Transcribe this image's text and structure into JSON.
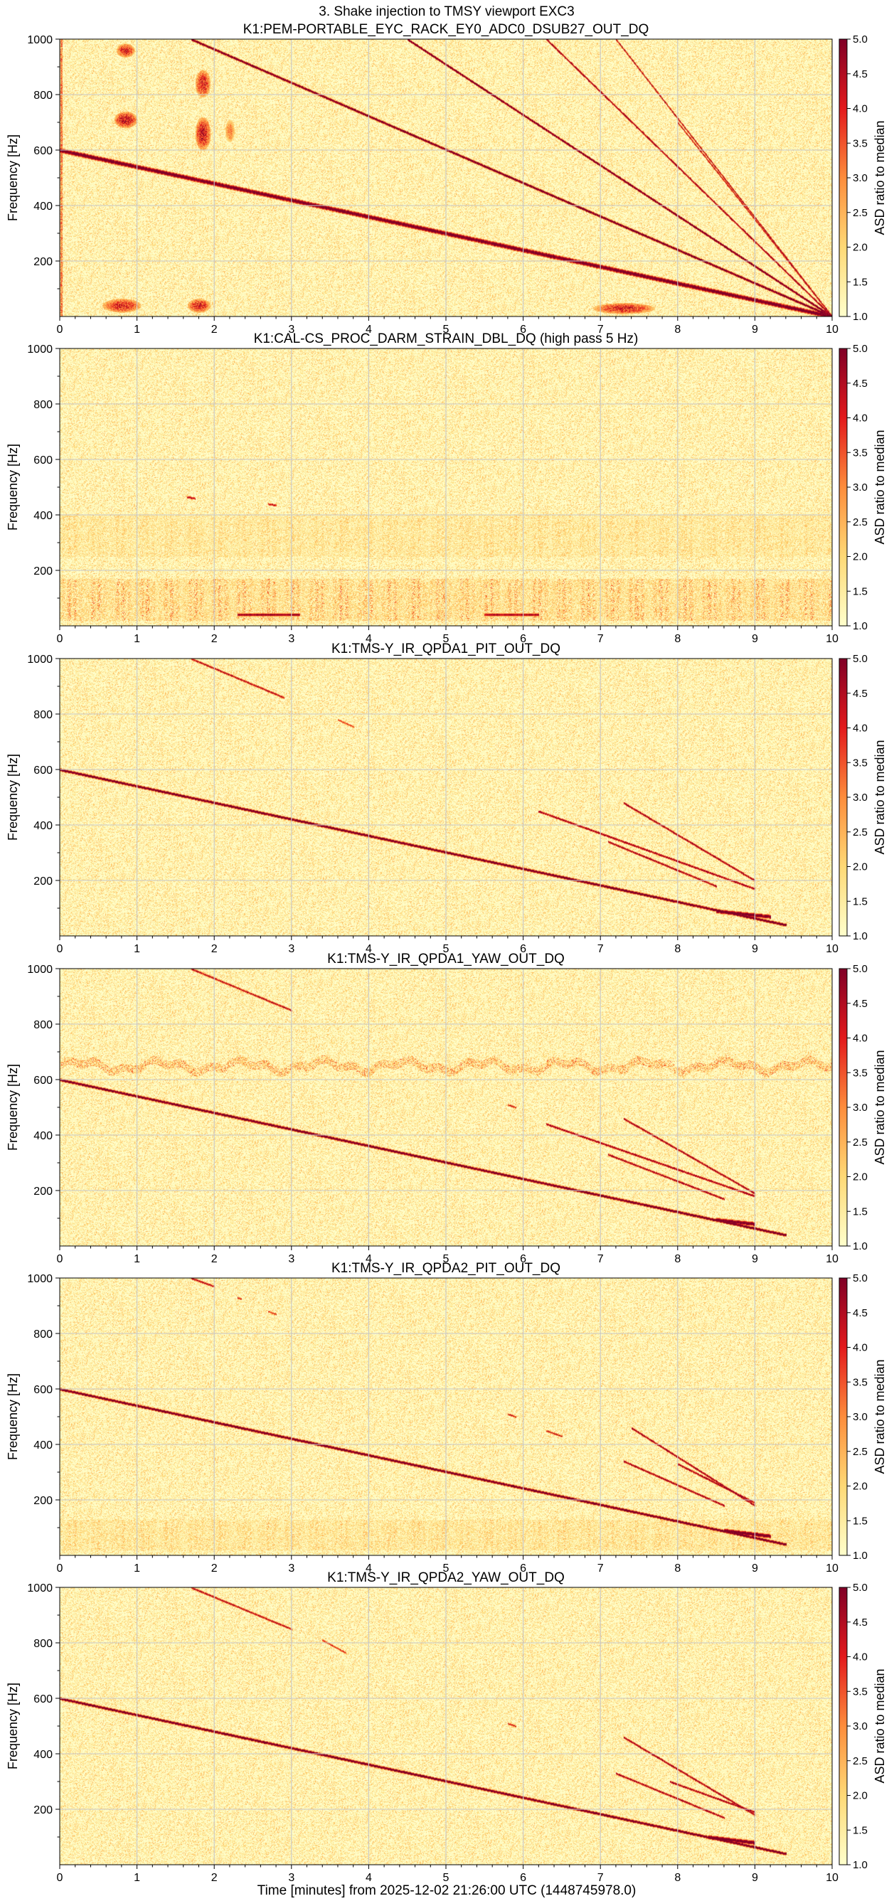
{
  "figure": {
    "suptitle": "3. Shake injection to TMSY viewport EXC3",
    "shared_xlabel": "Time [minutes] from 2025-12-02 21:26:00 UTC (1448745978.0)"
  },
  "colormap": {
    "low": "#ffffcc",
    "mid_low": "#fed976",
    "mid": "#fd8d3c",
    "mid_high": "#e31a1c",
    "high": "#800026"
  },
  "chart_data": [
    {
      "type": "heatmap",
      "title": "K1:PEM-PORTABLE_EYC_RACK_EY0_ADC0_DSUB27_OUT_DQ",
      "ylabel": "Frequency [Hz]",
      "xlabel": "",
      "xlim": [
        0,
        10
      ],
      "ylim": [
        0,
        1000
      ],
      "x_ticks": [
        "0",
        "1",
        "2",
        "3",
        "4",
        "5",
        "6",
        "7",
        "8",
        "9",
        "10"
      ],
      "y_ticks": [
        "200",
        "400",
        "600",
        "800",
        "1000"
      ],
      "colorbar_label": "ASD ratio to median",
      "colorbar_range": [
        1.0,
        5.0
      ],
      "colorbar_ticks": [
        "1.0",
        "1.5",
        "2.0",
        "2.5",
        "3.0",
        "3.5",
        "4.0",
        "4.5",
        "5.0"
      ],
      "grid": true,
      "features": [
        {
          "kind": "line",
          "x0": 0,
          "f0": 600,
          "x1": 10,
          "f1": 0,
          "intensity": 5,
          "width": 3.5
        },
        {
          "kind": "line",
          "x0": 1.7,
          "f0": 1000,
          "x1": 10,
          "f1": 0,
          "intensity": 5,
          "width": 1.8
        },
        {
          "kind": "line",
          "x0": 4.5,
          "f0": 1000,
          "x1": 10,
          "f1": 0,
          "intensity": 5,
          "width": 1.6
        },
        {
          "kind": "line",
          "x0": 6.3,
          "f0": 1000,
          "x1": 10,
          "f1": 0,
          "intensity": 4.5,
          "width": 1.2
        },
        {
          "kind": "line",
          "x0": 7.2,
          "f0": 1000,
          "x1": 10,
          "f1": 0,
          "intensity": 4.2,
          "width": 1.0
        },
        {
          "kind": "line",
          "x0": 8.0,
          "f0": 700,
          "x1": 10,
          "f1": 0,
          "intensity": 4.0,
          "width": 1.0
        },
        {
          "kind": "blob",
          "x": 0.8,
          "f": 40,
          "dx": 0.25,
          "df": 25,
          "intensity": 4.5
        },
        {
          "kind": "blob",
          "x": 1.8,
          "f": 40,
          "dx": 0.15,
          "df": 25,
          "intensity": 4.5
        },
        {
          "kind": "blob",
          "x": 7.3,
          "f": 30,
          "dx": 0.4,
          "df": 20,
          "intensity": 4.5
        },
        {
          "kind": "blob",
          "x": 0.85,
          "f": 710,
          "dx": 0.15,
          "df": 30,
          "intensity": 4.8
        },
        {
          "kind": "blob",
          "x": 0.85,
          "f": 960,
          "dx": 0.12,
          "df": 25,
          "intensity": 4.5
        },
        {
          "kind": "blob",
          "x": 1.85,
          "f": 660,
          "dx": 0.1,
          "df": 60,
          "intensity": 4.8
        },
        {
          "kind": "blob",
          "x": 1.85,
          "f": 840,
          "dx": 0.1,
          "df": 50,
          "intensity": 4.5
        },
        {
          "kind": "blob",
          "x": 2.2,
          "f": 670,
          "dx": 0.06,
          "df": 40,
          "intensity": 3.5
        },
        {
          "kind": "vband",
          "x": 0.02,
          "f0": 0,
          "f1": 1000,
          "intensity": 3.5
        }
      ]
    },
    {
      "type": "heatmap",
      "title": "K1:CAL-CS_PROC_DARM_STRAIN_DBL_DQ (high pass 5 Hz)",
      "ylabel": "Frequency [Hz]",
      "xlabel": "",
      "xlim": [
        0,
        10
      ],
      "ylim": [
        0,
        1000
      ],
      "x_ticks": [
        "0",
        "1",
        "2",
        "3",
        "4",
        "5",
        "6",
        "7",
        "8",
        "9",
        "10"
      ],
      "y_ticks": [
        "200",
        "400",
        "600",
        "800",
        "1000"
      ],
      "colorbar_label": "ASD ratio to median",
      "colorbar_range": [
        1.0,
        5.0
      ],
      "colorbar_ticks": [
        "1.0",
        "1.5",
        "2.0",
        "2.5",
        "3.0",
        "3.5",
        "4.0",
        "4.5",
        "5.0"
      ],
      "grid": true,
      "features": [
        {
          "kind": "noiseband",
          "f0": 20,
          "f1": 170,
          "intensity": 2.4
        },
        {
          "kind": "noiseband",
          "f0": 250,
          "f1": 400,
          "intensity": 1.8
        },
        {
          "kind": "line",
          "x0": 2.3,
          "f0": 40,
          "x1": 3.1,
          "f1": 40,
          "intensity": 4.5,
          "width": 2
        },
        {
          "kind": "line",
          "x0": 5.5,
          "f0": 40,
          "x1": 6.2,
          "f1": 40,
          "intensity": 4.2,
          "width": 2
        },
        {
          "kind": "line",
          "x0": 2.7,
          "f0": 440,
          "x1": 2.8,
          "f1": 435,
          "intensity": 4.0,
          "width": 1.5
        },
        {
          "kind": "line",
          "x0": 1.65,
          "f0": 465,
          "x1": 1.75,
          "f1": 460,
          "intensity": 4.0,
          "width": 1.5
        }
      ]
    },
    {
      "type": "heatmap",
      "title": "K1:TMS-Y_IR_QPDA1_PIT_OUT_DQ",
      "ylabel": "Frequency [Hz]",
      "xlabel": "",
      "xlim": [
        0,
        10
      ],
      "ylim": [
        0,
        1000
      ],
      "x_ticks": [
        "0",
        "1",
        "2",
        "3",
        "4",
        "5",
        "6",
        "7",
        "8",
        "9",
        "10"
      ],
      "y_ticks": [
        "200",
        "400",
        "600",
        "800",
        "1000"
      ],
      "colorbar_label": "ASD ratio to median",
      "colorbar_range": [
        1.0,
        5.0
      ],
      "colorbar_ticks": [
        "1.0",
        "1.5",
        "2.0",
        "2.5",
        "3.0",
        "3.5",
        "4.0",
        "4.5",
        "5.0"
      ],
      "grid": true,
      "features": [
        {
          "kind": "line",
          "x0": 0,
          "f0": 600,
          "x1": 9.4,
          "f1": 40,
          "intensity": 5,
          "width": 2
        },
        {
          "kind": "line",
          "x0": 1.7,
          "f0": 1000,
          "x1": 2.9,
          "f1": 860,
          "intensity": 4.2,
          "width": 1.2
        },
        {
          "kind": "line",
          "x0": 3.6,
          "f0": 780,
          "x1": 3.8,
          "f1": 755,
          "intensity": 3.5,
          "width": 1.0
        },
        {
          "kind": "line",
          "x0": 6.2,
          "f0": 450,
          "x1": 9.0,
          "f1": 170,
          "intensity": 4.5,
          "width": 1.3
        },
        {
          "kind": "line",
          "x0": 7.3,
          "f0": 480,
          "x1": 9.0,
          "f1": 200,
          "intensity": 4.5,
          "width": 1.2
        },
        {
          "kind": "line",
          "x0": 7.1,
          "f0": 340,
          "x1": 8.5,
          "f1": 180,
          "intensity": 4.5,
          "width": 1.2
        },
        {
          "kind": "line",
          "x0": 8.5,
          "f0": 90,
          "x1": 9.2,
          "f1": 70,
          "intensity": 5,
          "width": 3
        }
      ]
    },
    {
      "type": "heatmap",
      "title": "K1:TMS-Y_IR_QPDA1_YAW_OUT_DQ",
      "ylabel": "Frequency [Hz]",
      "xlabel": "",
      "xlim": [
        0,
        10
      ],
      "ylim": [
        0,
        1000
      ],
      "x_ticks": [
        "0",
        "1",
        "2",
        "3",
        "4",
        "5",
        "6",
        "7",
        "8",
        "9",
        "10"
      ],
      "y_ticks": [
        "200",
        "400",
        "600",
        "800",
        "1000"
      ],
      "colorbar_label": "ASD ratio to median",
      "colorbar_range": [
        1.0,
        5.0
      ],
      "colorbar_ticks": [
        "1.0",
        "1.5",
        "2.0",
        "2.5",
        "3.0",
        "3.5",
        "4.0",
        "4.5",
        "5.0"
      ],
      "grid": true,
      "features": [
        {
          "kind": "wavyband",
          "f": 650,
          "amp": 15,
          "intensity": 2.8
        },
        {
          "kind": "line",
          "x0": 0,
          "f0": 600,
          "x1": 9.4,
          "f1": 40,
          "intensity": 5,
          "width": 2
        },
        {
          "kind": "line",
          "x0": 1.7,
          "f0": 1000,
          "x1": 3.0,
          "f1": 850,
          "intensity": 4.2,
          "width": 1.2
        },
        {
          "kind": "line",
          "x0": 5.8,
          "f0": 510,
          "x1": 5.9,
          "f1": 500,
          "intensity": 4.0,
          "width": 1.0
        },
        {
          "kind": "line",
          "x0": 6.3,
          "f0": 440,
          "x1": 9.0,
          "f1": 180,
          "intensity": 4.5,
          "width": 1.3
        },
        {
          "kind": "line",
          "x0": 7.3,
          "f0": 460,
          "x1": 9.0,
          "f1": 190,
          "intensity": 4.5,
          "width": 1.2
        },
        {
          "kind": "line",
          "x0": 7.1,
          "f0": 330,
          "x1": 8.6,
          "f1": 170,
          "intensity": 4.5,
          "width": 1.2
        },
        {
          "kind": "line",
          "x0": 8.5,
          "f0": 95,
          "x1": 9.0,
          "f1": 80,
          "intensity": 5,
          "width": 3
        }
      ]
    },
    {
      "type": "heatmap",
      "title": "K1:TMS-Y_IR_QPDA2_PIT_OUT_DQ",
      "ylabel": "Frequency [Hz]",
      "xlabel": "",
      "xlim": [
        0,
        10
      ],
      "ylim": [
        0,
        1000
      ],
      "x_ticks": [
        "0",
        "1",
        "2",
        "3",
        "4",
        "5",
        "6",
        "7",
        "8",
        "9",
        "10"
      ],
      "y_ticks": [
        "200",
        "400",
        "600",
        "800",
        "1000"
      ],
      "colorbar_label": "ASD ratio to median",
      "colorbar_range": [
        1.0,
        5.0
      ],
      "colorbar_ticks": [
        "1.0",
        "1.5",
        "2.0",
        "2.5",
        "3.0",
        "3.5",
        "4.0",
        "4.5",
        "5.0"
      ],
      "grid": true,
      "features": [
        {
          "kind": "noiseband",
          "f0": 20,
          "f1": 130,
          "intensity": 1.9
        },
        {
          "kind": "line",
          "x0": 0,
          "f0": 600,
          "x1": 9.4,
          "f1": 40,
          "intensity": 5,
          "width": 2
        },
        {
          "kind": "line",
          "x0": 1.7,
          "f0": 1000,
          "x1": 2.0,
          "f1": 970,
          "intensity": 4.2,
          "width": 1.2
        },
        {
          "kind": "line",
          "x0": 2.3,
          "f0": 930,
          "x1": 2.35,
          "f1": 925,
          "intensity": 3.8,
          "width": 1.0
        },
        {
          "kind": "line",
          "x0": 2.7,
          "f0": 880,
          "x1": 2.8,
          "f1": 870,
          "intensity": 3.8,
          "width": 1.0
        },
        {
          "kind": "line",
          "x0": 5.8,
          "f0": 510,
          "x1": 5.9,
          "f1": 500,
          "intensity": 4.0,
          "width": 1.0
        },
        {
          "kind": "line",
          "x0": 6.3,
          "f0": 450,
          "x1": 6.5,
          "f1": 430,
          "intensity": 4.0,
          "width": 1.0
        },
        {
          "kind": "line",
          "x0": 7.4,
          "f0": 460,
          "x1": 9.0,
          "f1": 180,
          "intensity": 4.5,
          "width": 1.2
        },
        {
          "kind": "line",
          "x0": 8.0,
          "f0": 330,
          "x1": 9.0,
          "f1": 190,
          "intensity": 4.5,
          "width": 1.2
        },
        {
          "kind": "line",
          "x0": 7.3,
          "f0": 340,
          "x1": 8.6,
          "f1": 180,
          "intensity": 4.5,
          "width": 1.2
        },
        {
          "kind": "line",
          "x0": 8.6,
          "f0": 90,
          "x1": 9.2,
          "f1": 70,
          "intensity": 5,
          "width": 3
        }
      ]
    },
    {
      "type": "heatmap",
      "title": "K1:TMS-Y_IR_QPDA2_YAW_OUT_DQ",
      "ylabel": "Frequency [Hz]",
      "xlabel": "Time [minutes] from 2025-12-02 21:26:00 UTC (1448745978.0)",
      "xlim": [
        0,
        10
      ],
      "ylim": [
        0,
        1000
      ],
      "x_ticks": [
        "0",
        "1",
        "2",
        "3",
        "4",
        "5",
        "6",
        "7",
        "8",
        "9",
        "10"
      ],
      "y_ticks": [
        "200",
        "400",
        "600",
        "800",
        "1000"
      ],
      "colorbar_label": "ASD ratio to median",
      "colorbar_range": [
        1.0,
        5.0
      ],
      "colorbar_ticks": [
        "1.0",
        "1.5",
        "2.0",
        "2.5",
        "3.0",
        "3.5",
        "4.0",
        "4.5",
        "5.0"
      ],
      "grid": true,
      "features": [
        {
          "kind": "line",
          "x0": 0,
          "f0": 600,
          "x1": 9.4,
          "f1": 40,
          "intensity": 5,
          "width": 2
        },
        {
          "kind": "line",
          "x0": 1.7,
          "f0": 1000,
          "x1": 3.0,
          "f1": 850,
          "intensity": 4.2,
          "width": 1.2
        },
        {
          "kind": "line",
          "x0": 3.4,
          "f0": 810,
          "x1": 3.7,
          "f1": 765,
          "intensity": 3.8,
          "width": 1.0
        },
        {
          "kind": "line",
          "x0": 5.8,
          "f0": 510,
          "x1": 5.9,
          "f1": 500,
          "intensity": 4.0,
          "width": 1.0
        },
        {
          "kind": "line",
          "x0": 7.3,
          "f0": 460,
          "x1": 9.0,
          "f1": 180,
          "intensity": 4.5,
          "width": 1.2
        },
        {
          "kind": "line",
          "x0": 7.9,
          "f0": 300,
          "x1": 9.0,
          "f1": 190,
          "intensity": 4.5,
          "width": 1.2
        },
        {
          "kind": "line",
          "x0": 7.2,
          "f0": 330,
          "x1": 8.6,
          "f1": 170,
          "intensity": 4.5,
          "width": 1.2
        },
        {
          "kind": "line",
          "x0": 8.4,
          "f0": 100,
          "x1": 9.0,
          "f1": 80,
          "intensity": 5,
          "width": 3
        }
      ]
    }
  ]
}
